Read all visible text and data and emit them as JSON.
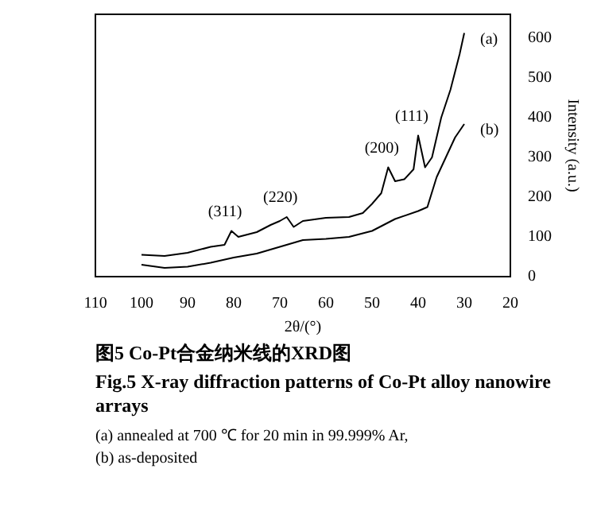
{
  "chart_data": {
    "type": "line",
    "title": "图5  Co-Pt合金纳米线的XRD图",
    "subtitle": "Fig.5  X-ray diffraction patterns of Co-Pt alloy nanowire arrays",
    "xlabel": "2θ/(°)",
    "ylabel": "Intensity (a.u.)",
    "xlim": [
      110,
      20
    ],
    "xticks": [
      110,
      100,
      90,
      80,
      70,
      60,
      50,
      40,
      30,
      20
    ],
    "ylim": [
      0,
      660
    ],
    "yticks": [
      0,
      100,
      200,
      300,
      400,
      500,
      600
    ],
    "grid": false,
    "legend": false,
    "marker": "none",
    "line_style": "solid",
    "series": [
      {
        "name": "(a)",
        "color": "#000000",
        "x": [
          100,
          95,
          90,
          85,
          82,
          80.5,
          79,
          75,
          72,
          70,
          68.5,
          67,
          65,
          60,
          55,
          52,
          50,
          48,
          46.5,
          45,
          43,
          41,
          40,
          38.5,
          37,
          35,
          33,
          31,
          30
        ],
        "values": [
          55,
          52,
          60,
          75,
          80,
          115,
          100,
          112,
          130,
          140,
          150,
          125,
          140,
          148,
          150,
          160,
          183,
          210,
          275,
          240,
          245,
          270,
          355,
          275,
          300,
          400,
          470,
          560,
          613
        ]
      },
      {
        "name": "(b)",
        "color": "#000000",
        "x": [
          100,
          95,
          90,
          85,
          80,
          75,
          70,
          65,
          60,
          55,
          50,
          45,
          40,
          38,
          36,
          34,
          32,
          30
        ],
        "values": [
          30,
          22,
          25,
          35,
          48,
          58,
          75,
          92,
          95,
          100,
          115,
          145,
          165,
          175,
          250,
          300,
          350,
          384
        ]
      }
    ],
    "annotations": [
      {
        "text": "(311)",
        "x": 80.5,
        "y": 115
      },
      {
        "text": "(220)",
        "x": 68.5,
        "y": 150
      },
      {
        "text": "(200)",
        "x": 46.5,
        "y": 275
      },
      {
        "text": "(111)",
        "x": 40,
        "y": 355
      },
      "(a) annealed at 700 ℃ for 20 min in 99.999% Ar,",
      "(b) as-deposited"
    ]
  }
}
